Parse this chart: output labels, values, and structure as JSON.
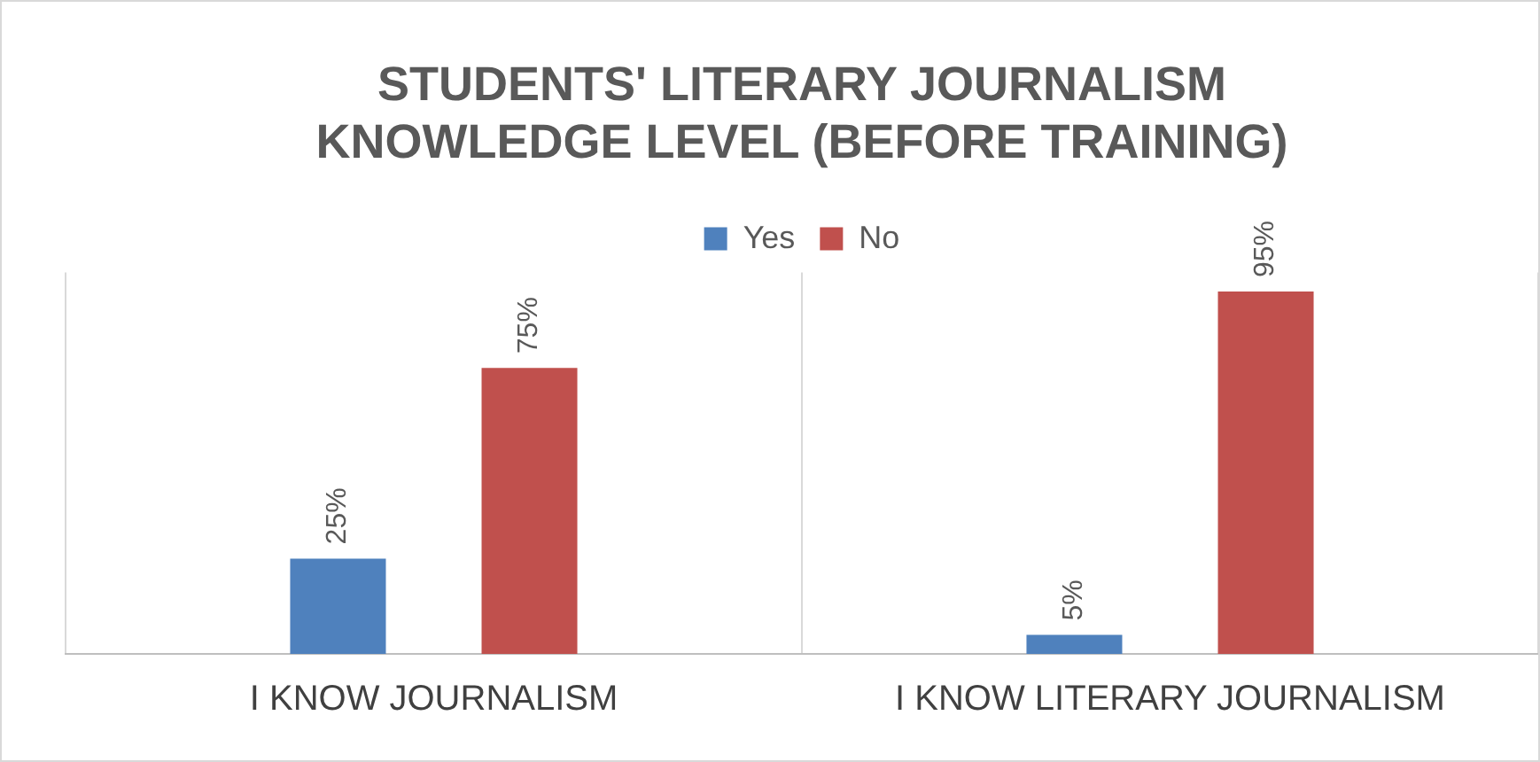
{
  "chart_data": {
    "type": "bar",
    "title": "STUDENTS' LITERARY JOURNALISM KNOWLEDGE LEVEL (BEFORE TRAINING)",
    "categories": [
      "I KNOW JOURNALISM",
      "I KNOW LITERARY JOURNALISM"
    ],
    "series": [
      {
        "name": "Yes",
        "color": "#4f81bd",
        "values": [
          25,
          5
        ],
        "value_labels": [
          "25%",
          "5%"
        ]
      },
      {
        "name": "No",
        "color": "#c0504d",
        "values": [
          75,
          95
        ],
        "value_labels": [
          "75%",
          "95%"
        ]
      }
    ],
    "legend": "top",
    "grid": "x",
    "tick_labels": "x"
  }
}
